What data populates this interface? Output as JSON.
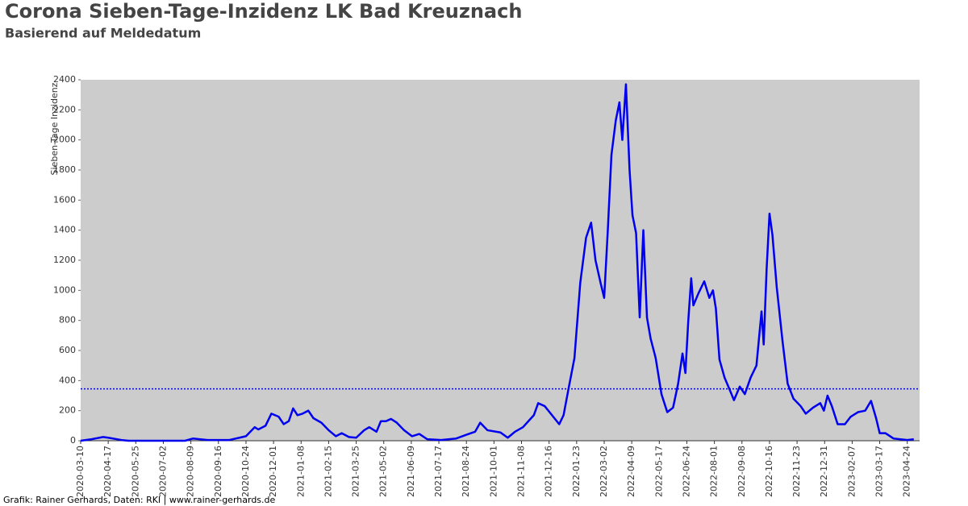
{
  "chart_data": {
    "type": "line",
    "title": "Corona Sieben-Tage-Inzidenz LK Bad Kreuznach",
    "subtitle": "Basierend auf Meldedatum",
    "y_label": "Sieben-Tage Inzidenz",
    "footer": "Grafik: Rainer Gerhards, Daten: RKI | www.rainer-gerhards.de",
    "grid": false,
    "xlim": [
      "2020-03-10",
      "2023-05-11"
    ],
    "xticks": [
      "2020-03-10",
      "2020-04-17",
      "2020-05-25",
      "2020-07-02",
      "2020-08-09",
      "2020-09-16",
      "2020-10-24",
      "2020-12-01",
      "2021-01-08",
      "2021-02-15",
      "2021-03-25",
      "2021-05-02",
      "2021-06-09",
      "2021-07-17",
      "2021-08-24",
      "2021-10-01",
      "2021-11-08",
      "2021-12-16",
      "2022-01-23",
      "2022-03-02",
      "2022-04-09",
      "2022-05-17",
      "2022-06-24",
      "2022-08-01",
      "2022-09-08",
      "2022-10-16",
      "2022-11-23",
      "2022-12-31",
      "2023-02-07",
      "2023-03-17",
      "2023-04-24"
    ],
    "ylim": [
      0,
      2400
    ],
    "yticks": [
      0,
      200,
      400,
      600,
      800,
      1000,
      1200,
      1400,
      1600,
      1800,
      2000,
      2200,
      2400
    ],
    "reference_line": {
      "value": 345,
      "color": "#0000ee"
    },
    "x": [
      "2020-03-10",
      "2020-03-25",
      "2020-04-10",
      "2020-04-17",
      "2020-05-05",
      "2020-05-15",
      "2020-08-01",
      "2020-08-12",
      "2020-09-01",
      "2020-10-01",
      "2020-10-15",
      "2020-10-24",
      "2020-11-05",
      "2020-11-10",
      "2020-11-20",
      "2020-11-28",
      "2020-12-08",
      "2020-12-15",
      "2020-12-22",
      "2020-12-28",
      "2021-01-03",
      "2021-01-10",
      "2021-01-18",
      "2021-01-25",
      "2021-02-05",
      "2021-02-15",
      "2021-02-25",
      "2021-03-05",
      "2021-03-15",
      "2021-03-25",
      "2021-04-05",
      "2021-04-12",
      "2021-04-22",
      "2021-04-28",
      "2021-05-05",
      "2021-05-12",
      "2021-05-20",
      "2021-05-30",
      "2021-06-10",
      "2021-06-20",
      "2021-07-01",
      "2021-07-20",
      "2021-08-10",
      "2021-08-24",
      "2021-09-05",
      "2021-09-12",
      "2021-09-22",
      "2021-10-10",
      "2021-10-20",
      "2021-10-30",
      "2021-11-10",
      "2021-11-25",
      "2021-12-01",
      "2021-12-10",
      "2021-12-20",
      "2021-12-30",
      "2022-01-05",
      "2022-01-12",
      "2022-01-20",
      "2022-01-28",
      "2022-02-05",
      "2022-02-12",
      "2022-02-18",
      "2022-02-25",
      "2022-03-02",
      "2022-03-07",
      "2022-03-12",
      "2022-03-18",
      "2022-03-23",
      "2022-03-27",
      "2022-04-01",
      "2022-04-06",
      "2022-04-10",
      "2022-04-15",
      "2022-04-20",
      "2022-04-25",
      "2022-04-30",
      "2022-05-05",
      "2022-05-12",
      "2022-05-20",
      "2022-05-28",
      "2022-06-05",
      "2022-06-12",
      "2022-06-18",
      "2022-06-22",
      "2022-06-26",
      "2022-06-30",
      "2022-07-03",
      "2022-07-10",
      "2022-07-18",
      "2022-07-25",
      "2022-07-30",
      "2022-08-03",
      "2022-08-08",
      "2022-08-15",
      "2022-08-22",
      "2022-08-28",
      "2022-09-05",
      "2022-09-12",
      "2022-09-20",
      "2022-09-28",
      "2022-10-05",
      "2022-10-08",
      "2022-10-12",
      "2022-10-16",
      "2022-10-20",
      "2022-10-26",
      "2022-11-03",
      "2022-11-10",
      "2022-11-18",
      "2022-11-28",
      "2022-12-05",
      "2022-12-15",
      "2022-12-25",
      "2022-12-30",
      "2023-01-04",
      "2023-01-10",
      "2023-01-18",
      "2023-01-28",
      "2023-02-05",
      "2023-02-15",
      "2023-02-25",
      "2023-03-05",
      "2023-03-12",
      "2023-03-17",
      "2023-03-25",
      "2023-04-05",
      "2023-04-24",
      "2023-05-03"
    ],
    "series": [
      {
        "color": "#0000ee",
        "values": [
          0,
          10,
          25,
          20,
          5,
          0,
          0,
          15,
          5,
          5,
          20,
          30,
          90,
          75,
          100,
          180,
          160,
          110,
          130,
          215,
          170,
          180,
          200,
          150,
          120,
          70,
          30,
          50,
          25,
          20,
          70,
          90,
          60,
          130,
          130,
          145,
          120,
          70,
          30,
          45,
          10,
          5,
          15,
          40,
          60,
          120,
          70,
          55,
          20,
          60,
          90,
          170,
          250,
          230,
          170,
          110,
          170,
          350,
          550,
          1050,
          1350,
          1450,
          1200,
          1050,
          950,
          1400,
          1900,
          2130,
          2250,
          2000,
          2370,
          1800,
          1500,
          1380,
          820,
          1400,
          820,
          680,
          550,
          310,
          190,
          220,
          380,
          580,
          450,
          800,
          1080,
          900,
          980,
          1060,
          950,
          1000,
          880,
          540,
          420,
          340,
          270,
          360,
          310,
          420,
          500,
          860,
          640,
          1140,
          1510,
          1370,
          1020,
          660,
          380,
          280,
          230,
          180,
          220,
          250,
          200,
          300,
          230,
          110,
          110,
          160,
          190,
          200,
          265,
          150,
          50,
          50,
          15,
          5,
          10
        ]
      }
    ]
  }
}
